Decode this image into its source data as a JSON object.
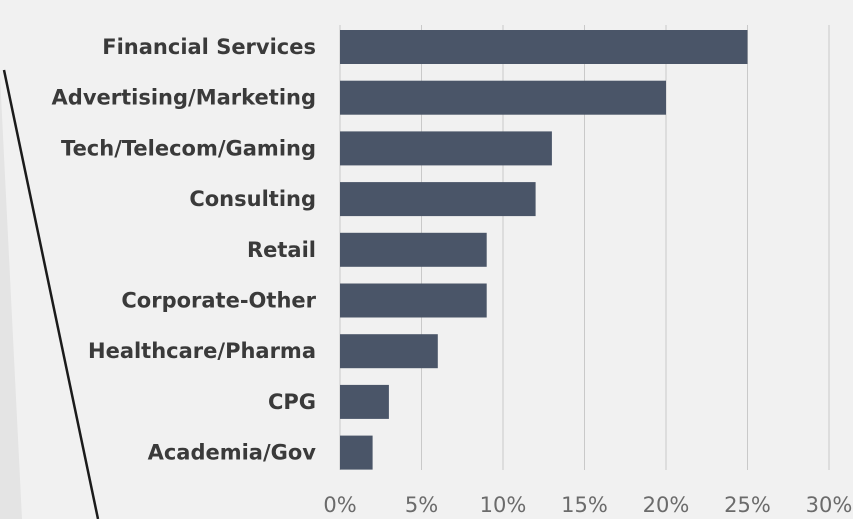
{
  "chart_data": {
    "type": "bar",
    "orientation": "horizontal",
    "categories": [
      "Financial Services",
      "Advertising/Marketing",
      "Tech/Telecom/Gaming",
      "Consulting",
      "Retail",
      "Corporate-Other",
      "Healthcare/Pharma",
      "CPG",
      "Academia/Gov"
    ],
    "values": [
      25,
      20,
      13,
      12,
      9,
      9,
      6,
      3,
      2
    ],
    "unit": "%",
    "xlim": [
      0,
      30
    ],
    "xticks": [
      "0%",
      "5%",
      "10%",
      "15%",
      "20%",
      "25%",
      "30%"
    ],
    "grid": "vertical",
    "bar_color": "#4a5568",
    "grid_color": "#c9c9c9",
    "title": "",
    "xlabel": "",
    "ylabel": ""
  }
}
